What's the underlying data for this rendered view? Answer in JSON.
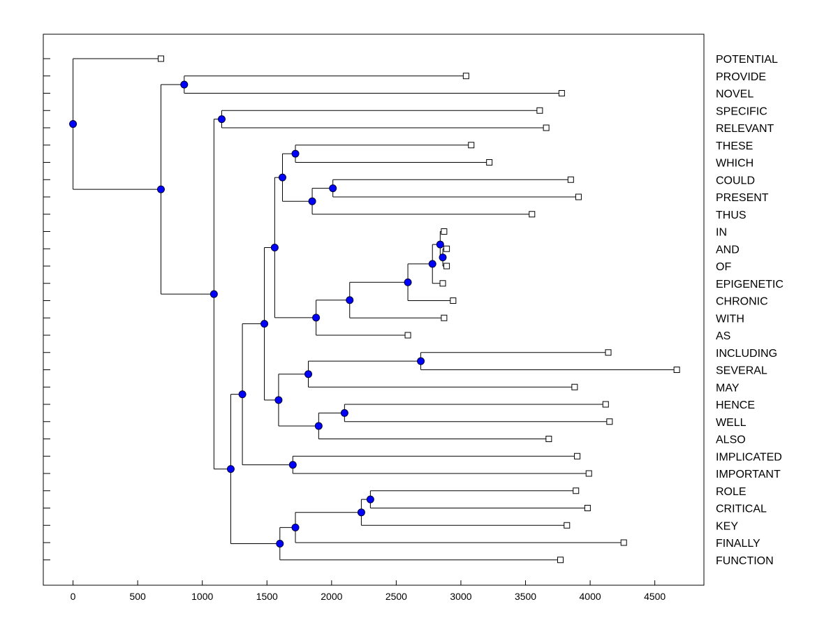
{
  "chart_data": {
    "type": "dendrogram",
    "title": "",
    "xlabel": "",
    "ylabel": "",
    "xlim": [
      -230,
      4880
    ],
    "xticks": [
      0,
      500,
      1000,
      1500,
      2000,
      2500,
      3000,
      3500,
      4000,
      4500
    ],
    "colors": {
      "node_fill": "#0000ff",
      "node_stroke": "#000033",
      "line": "#000000",
      "leaf_box_fill": "#ffffff"
    },
    "leaves": [
      {
        "label": "POTENTIAL",
        "x": 680
      },
      {
        "label": "PROVIDE",
        "x": 3040
      },
      {
        "label": "NOVEL",
        "x": 3780
      },
      {
        "label": "SPECIFIC",
        "x": 3610
      },
      {
        "label": "RELEVANT",
        "x": 3660
      },
      {
        "label": "THESE",
        "x": 3080
      },
      {
        "label": "WHICH",
        "x": 3220
      },
      {
        "label": "COULD",
        "x": 3850
      },
      {
        "label": "PRESENT",
        "x": 3910
      },
      {
        "label": "THUS",
        "x": 3550
      },
      {
        "label": "IN",
        "x": 2870
      },
      {
        "label": "AND",
        "x": 2890
      },
      {
        "label": "OF",
        "x": 2890
      },
      {
        "label": "EPIGENETIC",
        "x": 2860
      },
      {
        "label": "CHRONIC",
        "x": 2940
      },
      {
        "label": "WITH",
        "x": 2870
      },
      {
        "label": "AS",
        "x": 2590
      },
      {
        "label": "INCLUDING",
        "x": 4140
      },
      {
        "label": "SEVERAL",
        "x": 4670
      },
      {
        "label": "MAY",
        "x": 3880
      },
      {
        "label": "HENCE",
        "x": 4120
      },
      {
        "label": "WELL",
        "x": 4150
      },
      {
        "label": "ALSO",
        "x": 3680
      },
      {
        "label": "IMPLICATED",
        "x": 3900
      },
      {
        "label": "IMPORTANT",
        "x": 3990
      },
      {
        "label": "ROLE",
        "x": 3890
      },
      {
        "label": "CRITICAL",
        "x": 3980
      },
      {
        "label": "KEY",
        "x": 3820
      },
      {
        "label": "FINALLY",
        "x": 4260
      },
      {
        "label": "FUNCTION",
        "x": 3770
      }
    ],
    "merges": [
      {
        "id": "n1",
        "x": 2860,
        "children": [
          "L11",
          "L12"
        ]
      },
      {
        "id": "n2",
        "x": 2840,
        "children": [
          "L10",
          "n1"
        ]
      },
      {
        "id": "n3",
        "x": 2780,
        "children": [
          "n2",
          "L13"
        ]
      },
      {
        "id": "n4",
        "x": 2590,
        "children": [
          "n3",
          "L14"
        ]
      },
      {
        "id": "n5",
        "x": 2140,
        "children": [
          "n4",
          "L15"
        ]
      },
      {
        "id": "n6",
        "x": 1880,
        "children": [
          "n5",
          "L16"
        ]
      },
      {
        "id": "n7",
        "x": 1720,
        "children": [
          "L5",
          "L6"
        ]
      },
      {
        "id": "n8",
        "x": 2010,
        "children": [
          "L7",
          "L8"
        ]
      },
      {
        "id": "n9",
        "x": 1850,
        "children": [
          "n8",
          "L9"
        ]
      },
      {
        "id": "n10",
        "x": 1620,
        "children": [
          "n7",
          "n9"
        ]
      },
      {
        "id": "n11",
        "x": 1560,
        "children": [
          "n10",
          "n6"
        ]
      },
      {
        "id": "n12",
        "x": 2690,
        "children": [
          "L17",
          "L18"
        ]
      },
      {
        "id": "n13",
        "x": 1820,
        "children": [
          "n12",
          "L19"
        ]
      },
      {
        "id": "n14",
        "x": 2100,
        "children": [
          "L20",
          "L21"
        ]
      },
      {
        "id": "n15",
        "x": 1900,
        "children": [
          "n14",
          "L22"
        ]
      },
      {
        "id": "n16",
        "x": 1590,
        "children": [
          "n13",
          "n15"
        ]
      },
      {
        "id": "n17",
        "x": 1480,
        "children": [
          "n11",
          "n16"
        ]
      },
      {
        "id": "n18",
        "x": 1700,
        "children": [
          "L23",
          "L24"
        ]
      },
      {
        "id": "n19",
        "x": 1310,
        "children": [
          "n17",
          "n18"
        ]
      },
      {
        "id": "n20",
        "x": 2300,
        "children": [
          "L25",
          "L26"
        ]
      },
      {
        "id": "n21",
        "x": 2230,
        "children": [
          "n20",
          "L27"
        ]
      },
      {
        "id": "n22",
        "x": 1720,
        "children": [
          "n21",
          "L28"
        ]
      },
      {
        "id": "n23",
        "x": 1600,
        "children": [
          "n22",
          "L29"
        ]
      },
      {
        "id": "n24",
        "x": 1220,
        "children": [
          "n19",
          "n23"
        ]
      },
      {
        "id": "n25",
        "x": 1150,
        "children": [
          "L3",
          "L4"
        ]
      },
      {
        "id": "n26",
        "x": 1090,
        "children": [
          "n25",
          "n24"
        ]
      },
      {
        "id": "n27",
        "x": 860,
        "children": [
          "L1",
          "L2"
        ]
      },
      {
        "id": "n28",
        "x": 680,
        "children": [
          "n27",
          "n26"
        ]
      },
      {
        "id": "n29",
        "x": 0,
        "children": [
          "L0",
          "n28"
        ]
      }
    ]
  }
}
